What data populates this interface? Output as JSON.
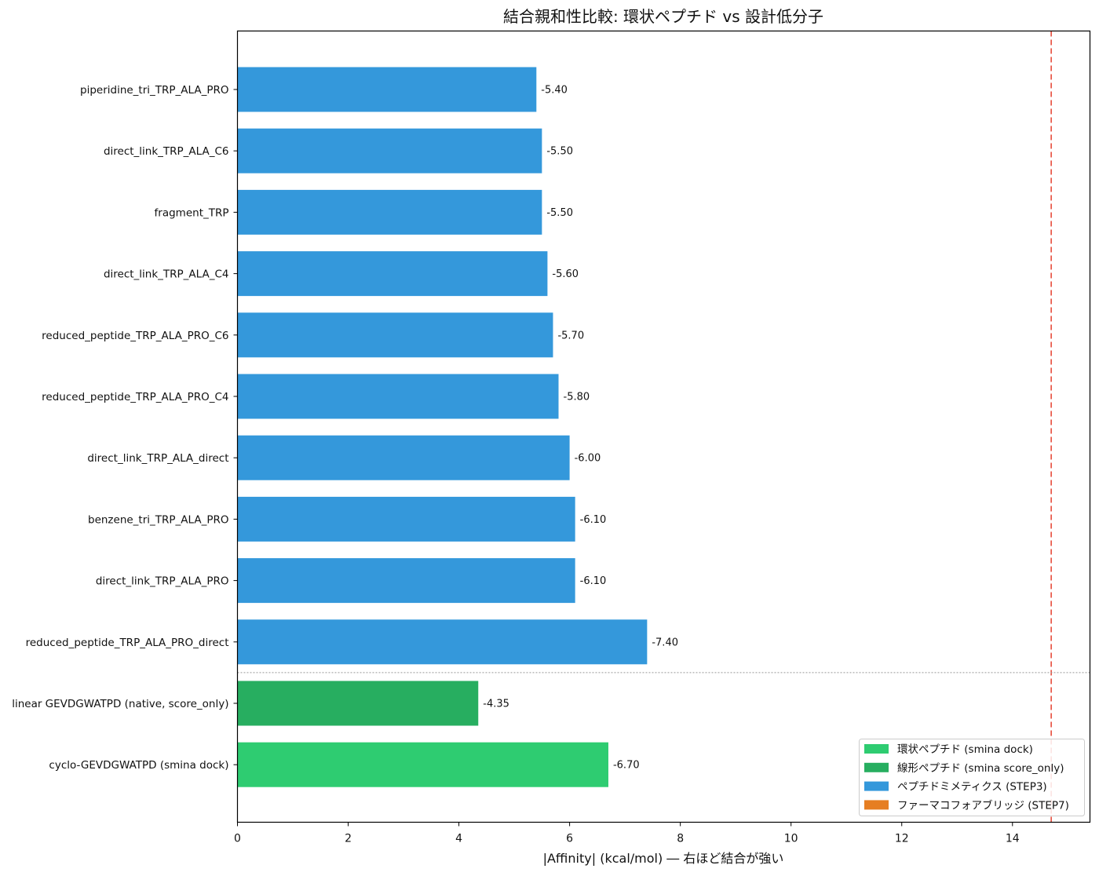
{
  "chart_data": {
    "type": "bar",
    "orientation": "horizontal",
    "title": "結合親和性比較: 環状ペプチド vs 設計低分子",
    "xlabel": "|Affinity| (kcal/mol) ― 右ほど結合が強い",
    "ylabel": "",
    "xlim": [
      0,
      15.4
    ],
    "xticks": [
      0,
      2,
      4,
      6,
      8,
      10,
      12,
      14
    ],
    "grid": false,
    "reference_line": {
      "x": 14.7,
      "style": "dashed",
      "color": "#e74c3c"
    },
    "separator_line": {
      "style": "dotted",
      "color": "#999999",
      "between": [
        "reduced_peptide_TRP_ALA_PRO_direct",
        "linear GEVDGWATPD (native, score_only)"
      ]
    },
    "legend_position": "bottom-right",
    "legend": [
      {
        "label": "環状ペプチド (smina dock)",
        "color": "#2ecc71"
      },
      {
        "label": "線形ペプチド (smina score_only)",
        "color": "#27ae60"
      },
      {
        "label": "ペプチドミメティクス (STEP3)",
        "color": "#3498db"
      },
      {
        "label": "ファーマコフォアブリッジ (STEP7)",
        "color": "#e67e22"
      }
    ],
    "bars": [
      {
        "category": "piperidine_tri_TRP_ALA_PRO",
        "value": 5.4,
        "label": "-5.40",
        "group": 2
      },
      {
        "category": "direct_link_TRP_ALA_C6",
        "value": 5.5,
        "label": "-5.50",
        "group": 2
      },
      {
        "category": "fragment_TRP",
        "value": 5.5,
        "label": "-5.50",
        "group": 2
      },
      {
        "category": "direct_link_TRP_ALA_C4",
        "value": 5.6,
        "label": "-5.60",
        "group": 2
      },
      {
        "category": "reduced_peptide_TRP_ALA_PRO_C6",
        "value": 5.7,
        "label": "-5.70",
        "group": 2
      },
      {
        "category": "reduced_peptide_TRP_ALA_PRO_C4",
        "value": 5.8,
        "label": "-5.80",
        "group": 2
      },
      {
        "category": "direct_link_TRP_ALA_direct",
        "value": 6.0,
        "label": "-6.00",
        "group": 2
      },
      {
        "category": "benzene_tri_TRP_ALA_PRO",
        "value": 6.1,
        "label": "-6.10",
        "group": 2
      },
      {
        "category": "direct_link_TRP_ALA_PRO",
        "value": 6.1,
        "label": "-6.10",
        "group": 2
      },
      {
        "category": "reduced_peptide_TRP_ALA_PRO_direct",
        "value": 7.4,
        "label": "-7.40",
        "group": 2
      },
      {
        "category": "linear GEVDGWATPD (native, score_only)",
        "value": 4.35,
        "label": "-4.35",
        "group": 1
      },
      {
        "category": "cyclo-GEVDGWATPD (smina dock)",
        "value": 6.7,
        "label": "-6.70",
        "group": 0
      }
    ]
  }
}
